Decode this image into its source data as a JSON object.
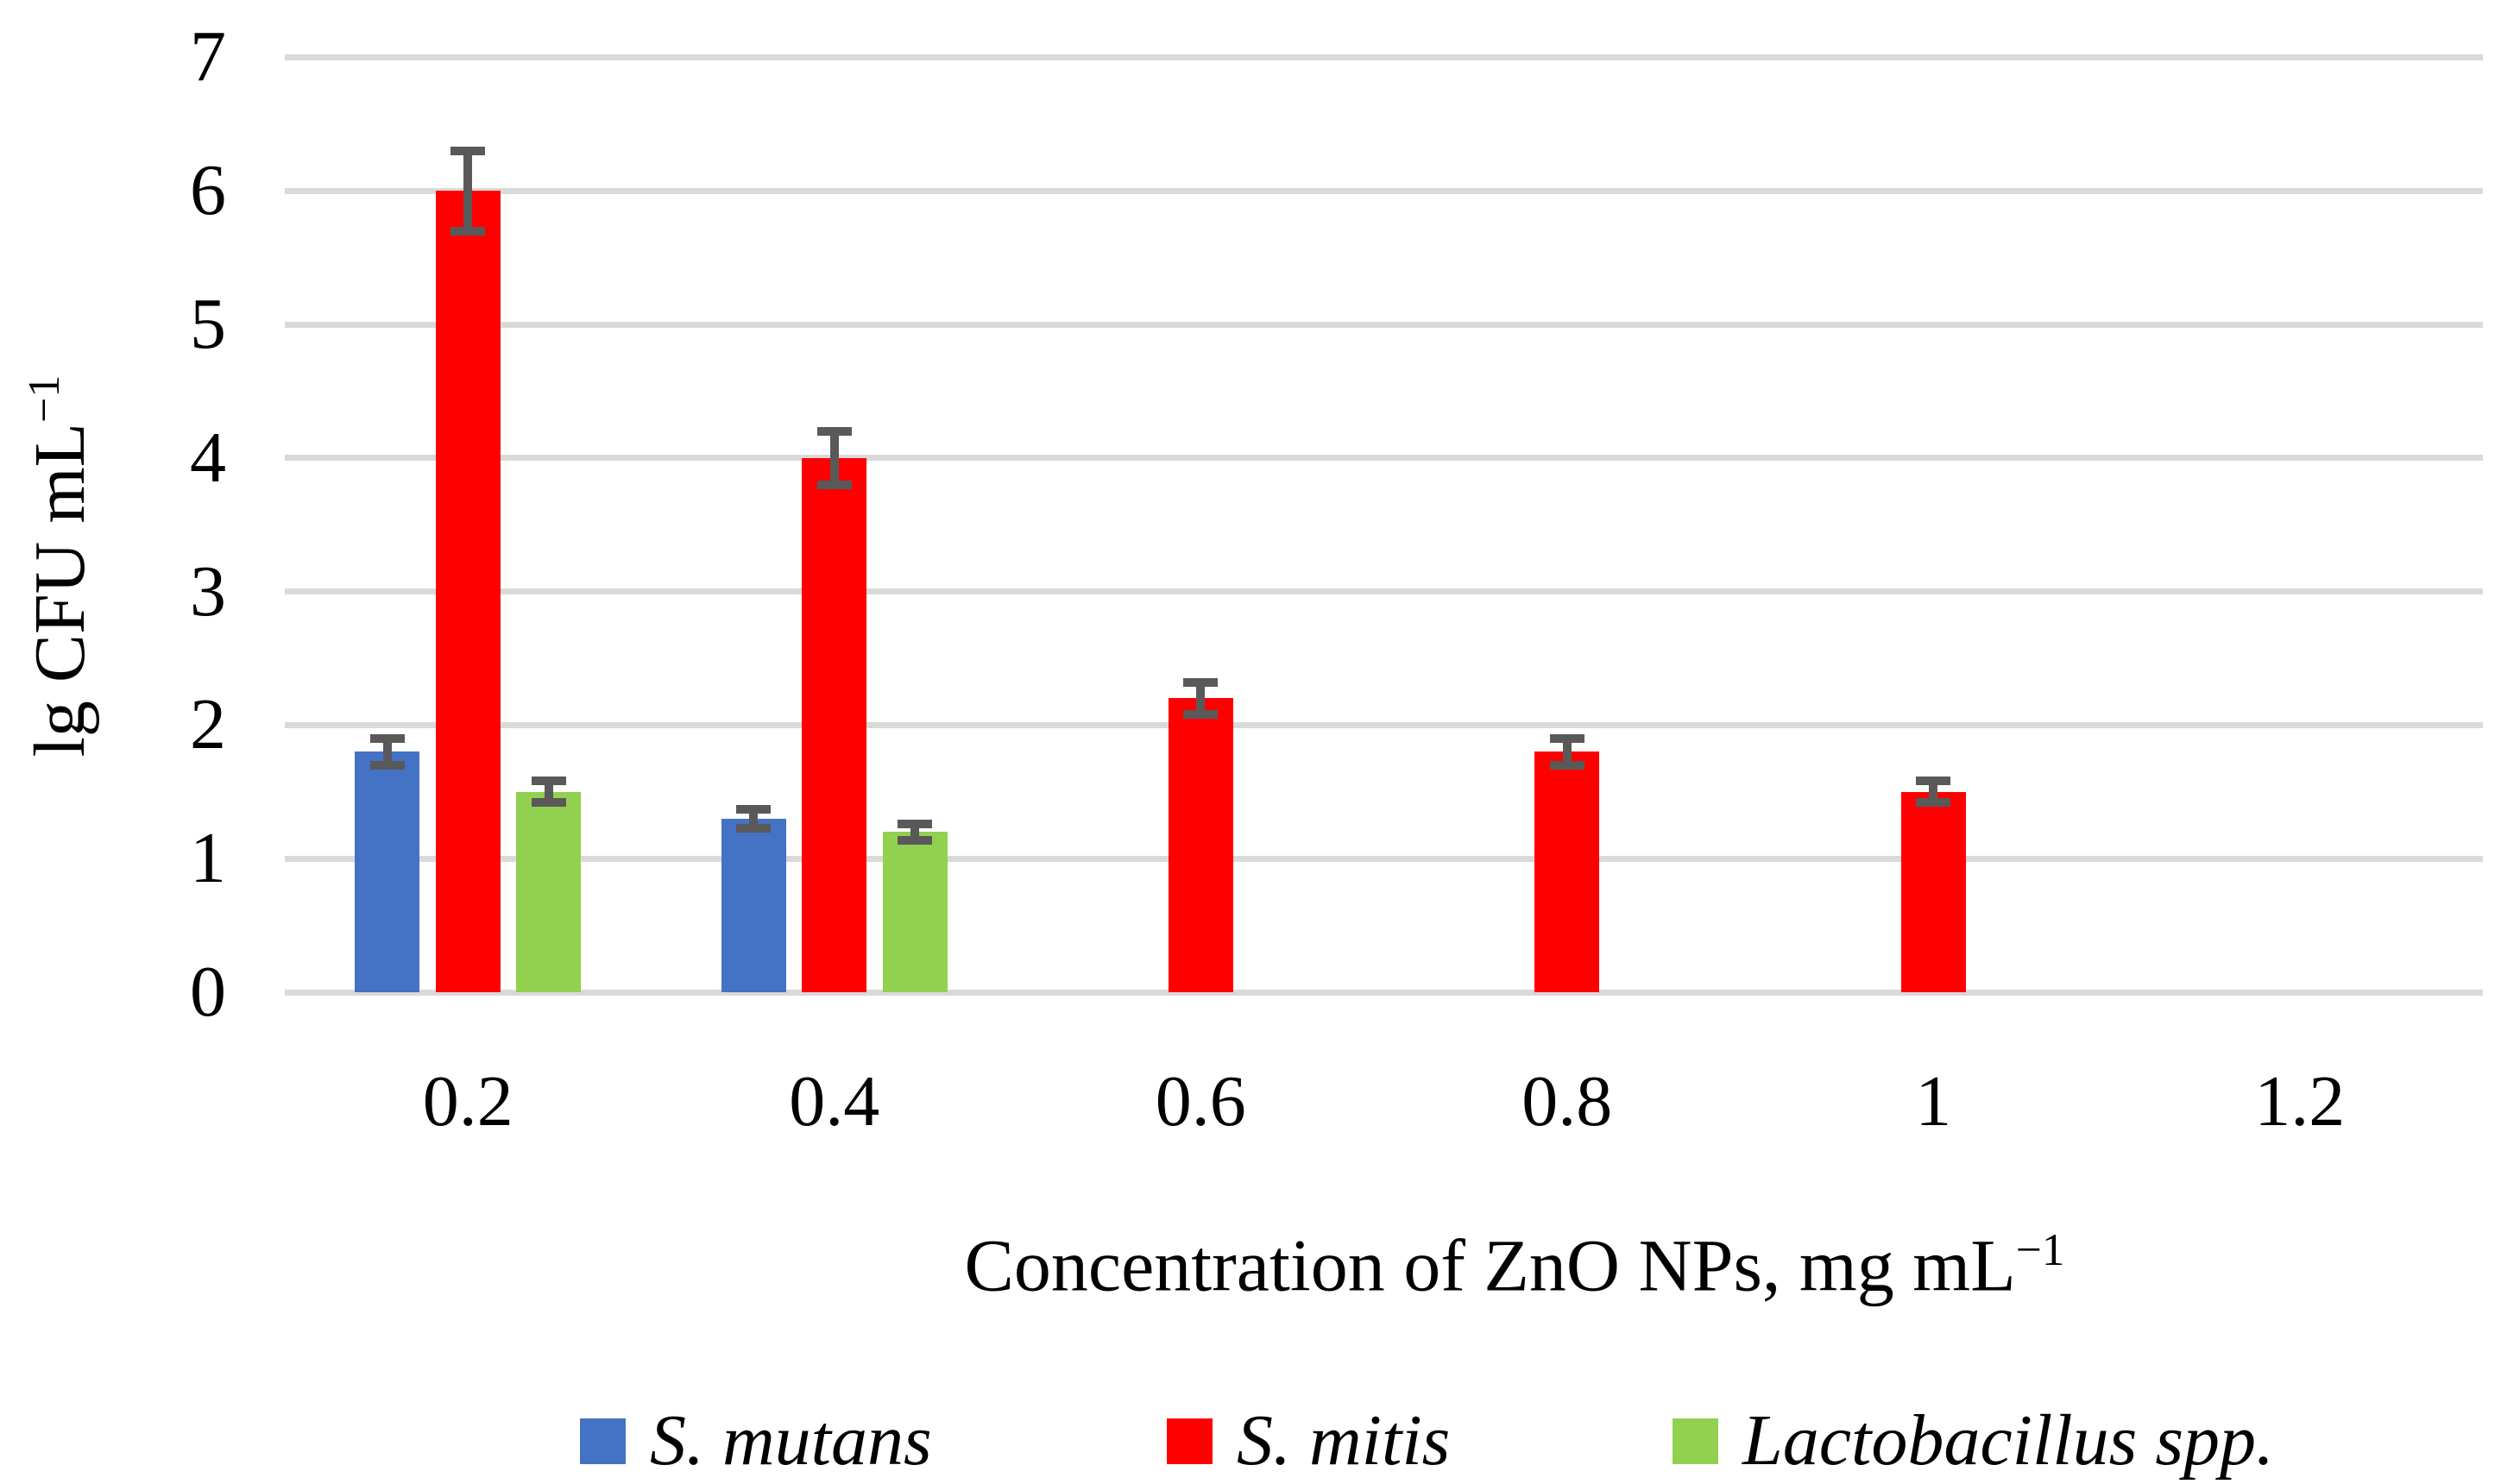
{
  "figure": {
    "background": "#FFFFFF"
  },
  "axes": {
    "y_title_main": "lg CFU mL",
    "y_title_sup": "−1",
    "x_title_main": "Concentration of ZnO NPs, mg mL",
    "x_title_sup": "−1"
  },
  "chart_data": {
    "type": "bar",
    "title": "",
    "xlabel": "Concentration of ZnO NPs, mg mL−1",
    "ylabel": "lg CFU mL−1",
    "categories": [
      "0.2",
      "0.4",
      "0.6",
      "0.8",
      "1",
      "1.2"
    ],
    "series": [
      {
        "name": "S. mutans",
        "color": "#4472C4",
        "values": [
          1.8,
          1.3,
          null,
          null,
          null,
          null
        ],
        "errors": [
          0.1,
          0.07,
          null,
          null,
          null,
          null
        ]
      },
      {
        "name": "S. mitis",
        "color": "#FF0000",
        "values": [
          6.0,
          4.0,
          2.2,
          1.8,
          1.5,
          null
        ],
        "errors": [
          0.3,
          0.2,
          0.12,
          0.1,
          0.08,
          null
        ]
      },
      {
        "name": "Lactobacillus spp.",
        "color": "#92D050",
        "values": [
          1.5,
          1.2,
          null,
          null,
          null,
          null
        ],
        "errors": [
          0.08,
          0.06,
          null,
          null,
          null,
          null
        ]
      }
    ],
    "ylim": [
      0,
      7
    ],
    "yticks": [
      "0",
      "1",
      "2",
      "3",
      "4",
      "5",
      "6",
      "7"
    ],
    "grid": true,
    "gridline_color": "#D9D9D9",
    "error_bar_color": "#595959",
    "legend_position": "bottom",
    "legend_italic": true
  }
}
